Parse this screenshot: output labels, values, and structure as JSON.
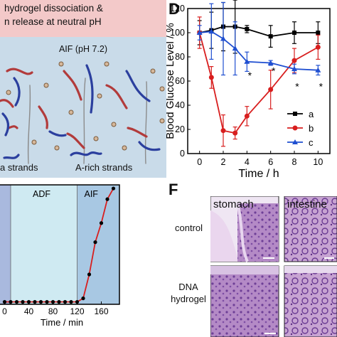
{
  "panel_c": {
    "banner_line1": "hydrogel dissociation &",
    "banner_line2": "n release at neutral pH",
    "condition_label": "AIF (pH 7.2)",
    "legend_left": "a strands",
    "legend_right": "A-rich strands"
  },
  "panel_d_letter": "D",
  "panel_f_letter": "F",
  "panel_e": {
    "regions": [
      "ADF",
      "AIF"
    ],
    "xlabel": "Time / min",
    "xticks": [
      "0",
      "40",
      "80",
      "120",
      "160"
    ]
  },
  "panel_f": {
    "columns": [
      "stomach",
      "intestine"
    ],
    "rows": [
      "control",
      "DNA",
      "hydrogel"
    ]
  },
  "chart_data": [
    {
      "type": "line",
      "panel": "D",
      "xlabel": "Time / h",
      "ylabel": "Blood Glucose Level / %",
      "xlim": [
        -1,
        11
      ],
      "ylim": [
        0,
        120
      ],
      "xticks": [
        0,
        2,
        4,
        6,
        8,
        10
      ],
      "yticks": [
        0,
        20,
        40,
        60,
        80,
        100,
        120
      ],
      "legend_position": "right",
      "series": [
        {
          "name": "a",
          "color": "#000000",
          "marker": "square",
          "x": [
            0,
            1,
            2,
            3,
            4,
            6,
            8,
            10
          ],
          "y": [
            100,
            102,
            105,
            105,
            103,
            97,
            100,
            100
          ],
          "err": [
            10,
            15,
            20,
            22,
            3,
            9,
            9,
            9
          ]
        },
        {
          "name": "b",
          "color": "#d81e1e",
          "marker": "circle",
          "x": [
            0,
            1,
            2,
            3,
            4,
            6,
            8,
            10
          ],
          "y": [
            100,
            63,
            19,
            17,
            31,
            53,
            77,
            88
          ],
          "err": [
            13,
            9,
            13,
            5,
            8,
            16,
            10,
            10
          ]
        },
        {
          "name": "c",
          "color": "#1f4fd1",
          "marker": "triangle",
          "x": [
            0,
            1,
            2,
            3,
            4,
            6,
            8,
            10
          ],
          "y": [
            100,
            101,
            95,
            87,
            76,
            75,
            70,
            69
          ],
          "err": [
            6,
            23,
            30,
            22,
            8,
            2,
            4,
            4
          ]
        }
      ],
      "annotations": [
        {
          "text": "*",
          "x": 4,
          "y": 64
        },
        {
          "text": "*",
          "x": 6,
          "y": 68
        },
        {
          "text": "*",
          "x": 8,
          "y": 55
        },
        {
          "text": "*",
          "x": 10,
          "y": 55
        }
      ]
    },
    {
      "type": "line",
      "panel": "E",
      "xlabel": "Time / min",
      "xlim": [
        -10,
        190
      ],
      "ylim": [
        0,
        1
      ],
      "xticks": [
        0,
        40,
        80,
        120,
        160
      ],
      "series": [
        {
          "name": "",
          "color": "#d81e1e",
          "marker": "circle",
          "x": [
            0,
            10,
            20,
            30,
            40,
            50,
            60,
            70,
            80,
            90,
            100,
            110,
            120,
            130,
            140,
            150,
            160,
            170,
            180
          ],
          "y": [
            0.02,
            0.02,
            0.02,
            0.02,
            0.02,
            0.02,
            0.02,
            0.02,
            0.02,
            0.02,
            0.02,
            0.02,
            0.02,
            0.05,
            0.25,
            0.52,
            0.68,
            0.88,
            0.97
          ]
        }
      ]
    }
  ]
}
